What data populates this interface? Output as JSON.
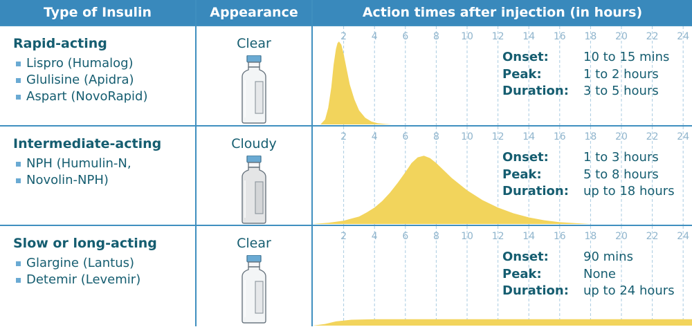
{
  "headers": {
    "type": "Type of Insulin",
    "appearance": "Appearance",
    "action": "Action times after injection (in hours)"
  },
  "info_labels": {
    "onset": "Onset:",
    "peak": "Peak:",
    "duration": "Duration:"
  },
  "colors": {
    "header": "#3989bc",
    "curve": "#f2d45c",
    "text": "#155d70",
    "vial_cap": "#6aaad3"
  },
  "rows": [
    {
      "type": "Rapid-acting",
      "drugs": [
        "Lispro (Humalog)",
        "Glulisine (Apidra)",
        "Aspart (NovoRapid)"
      ],
      "appearance": "Clear",
      "vial_icon": "vial-clear-icon",
      "onset": "10 to 15 mins",
      "peak": "1 to 2 hours",
      "duration": "3 to 5 hours"
    },
    {
      "type": "Intermediate-acting",
      "drugs": [
        "NPH (Humulin-N,",
        "Novolin-NPH)"
      ],
      "appearance": "Cloudy",
      "vial_icon": "vial-cloudy-icon",
      "onset": "1 to 3 hours",
      "peak": "5 to 8 hours",
      "duration": "up to 18 hours"
    },
    {
      "type": "Slow or long-acting",
      "drugs": [
        "Glargine (Lantus)",
        "Detemir (Levemir)"
      ],
      "appearance": "Clear",
      "vial_icon": "vial-clear-icon",
      "onset": "90 mins",
      "peak": "None",
      "duration": "up to 24 hours"
    }
  ],
  "chart_data": {
    "type": "area",
    "title": "Action times after injection (in hours)",
    "xlabel": "hours",
    "x_ticks": [
      2,
      4,
      6,
      8,
      10,
      12,
      14,
      16,
      18,
      20,
      22,
      24
    ],
    "xlim": [
      0,
      24.6
    ],
    "ylim": [
      0,
      1
    ],
    "series": [
      {
        "name": "Rapid-acting",
        "x": [
          0.5,
          0.8,
          1.0,
          1.2,
          1.35,
          1.5,
          1.6,
          1.7,
          1.85,
          2.0,
          2.2,
          2.4,
          2.7,
          3.0,
          3.4,
          3.8,
          4.2,
          4.7,
          5.1
        ],
        "y": [
          0,
          0.06,
          0.2,
          0.45,
          0.72,
          0.91,
          0.98,
          1.0,
          0.96,
          0.85,
          0.66,
          0.48,
          0.3,
          0.17,
          0.08,
          0.035,
          0.015,
          0.005,
          0
        ]
      },
      {
        "name": "Intermediate-acting",
        "x": [
          0,
          1,
          2,
          3,
          3.5,
          4,
          4.5,
          5,
          5.5,
          6,
          6.4,
          6.8,
          7.2,
          7.6,
          8.0,
          8.5,
          9,
          10,
          11,
          12,
          13,
          14,
          15,
          16,
          17,
          18
        ],
        "y": [
          0,
          0.015,
          0.04,
          0.09,
          0.14,
          0.2,
          0.28,
          0.38,
          0.5,
          0.63,
          0.74,
          0.81,
          0.83,
          0.8,
          0.74,
          0.65,
          0.56,
          0.41,
          0.29,
          0.2,
          0.13,
          0.08,
          0.045,
          0.022,
          0.01,
          0
        ]
      },
      {
        "name": "Slow or long-acting",
        "x": [
          0,
          0.8,
          1.5,
          2.5,
          4,
          12,
          24.6
        ],
        "y": [
          0,
          0.02,
          0.05,
          0.07,
          0.075,
          0.075,
          0.075
        ]
      }
    ]
  }
}
